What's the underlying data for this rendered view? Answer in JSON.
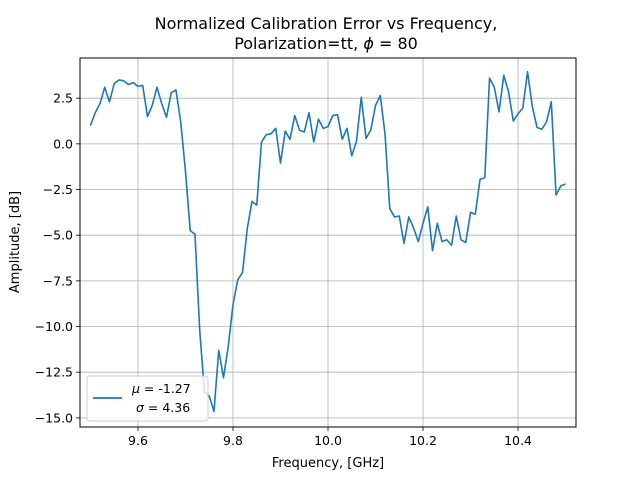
{
  "chart_data": {
    "type": "line",
    "title_line1": "Normalized Calibration Error vs Frequency,",
    "title_line2_prefix": "Polarization=tt, ",
    "title_line2_phi": "ϕ",
    "title_line2_suffix": " = 80",
    "xlabel": "Frequency, [GHz]",
    "ylabel": "Amplitude, [dB]",
    "xlim": [
      9.478,
      10.522
    ],
    "ylim": [
      -15.5,
      4.7
    ],
    "xticks": [
      9.6,
      9.8,
      10.0,
      10.2,
      10.4
    ],
    "xtick_labels": [
      "9.6",
      "9.8",
      "10.0",
      "10.2",
      "10.4"
    ],
    "yticks": [
      2.5,
      0.0,
      -2.5,
      -5.0,
      -7.5,
      -10.0,
      -12.5,
      -15.0
    ],
    "ytick_labels": [
      "2.5",
      "0.0",
      "−2.5",
      "−5.0",
      "−7.5",
      "−10.0",
      "−12.5",
      "−15.0"
    ],
    "grid": true,
    "legend_position": "lower-left",
    "line_color": "#1f77b4",
    "legend": {
      "mu_symbol": "μ",
      "mu_text": " = -1.27",
      "sigma_symbol": "σ",
      "sigma_text": " = 4.36"
    },
    "series": [
      {
        "x": [
          9.5,
          9.51,
          9.52,
          9.53,
          9.54,
          9.55,
          9.56,
          9.57,
          9.58,
          9.59,
          9.6,
          9.61,
          9.62,
          9.63,
          9.64,
          9.65,
          9.66,
          9.67,
          9.68,
          9.69,
          9.7,
          9.71,
          9.72,
          9.73,
          9.74,
          9.75,
          9.76,
          9.77,
          9.78,
          9.79,
          9.8,
          9.81,
          9.82,
          9.83,
          9.84,
          9.85,
          9.86,
          9.87,
          9.88,
          9.89,
          9.9,
          9.91,
          9.92,
          9.93,
          9.94,
          9.95,
          9.96,
          9.97,
          9.98,
          9.99,
          10.0,
          10.01,
          10.02,
          10.03,
          10.04,
          10.05,
          10.06,
          10.07,
          10.08,
          10.09,
          10.1,
          10.11,
          10.12,
          10.13,
          10.14,
          10.15,
          10.16,
          10.17,
          10.18,
          10.19,
          10.2,
          10.21,
          10.22,
          10.23,
          10.24,
          10.25,
          10.26,
          10.27,
          10.28,
          10.29,
          10.3,
          10.31,
          10.32,
          10.33,
          10.34,
          10.35,
          10.36,
          10.37,
          10.38,
          10.39,
          10.4,
          10.41,
          10.42,
          10.43,
          10.44,
          10.45,
          10.46,
          10.47,
          10.48,
          10.49,
          10.5
        ],
        "y": [
          1.0,
          1.7,
          2.2,
          3.1,
          2.3,
          3.3,
          3.5,
          3.45,
          3.25,
          3.35,
          3.15,
          3.2,
          1.5,
          2.1,
          3.1,
          2.2,
          1.45,
          2.8,
          2.95,
          1.2,
          -1.5,
          -4.75,
          -4.95,
          -10.2,
          -13.6,
          -13.8,
          -14.65,
          -11.3,
          -12.8,
          -11.1,
          -8.8,
          -7.45,
          -7.05,
          -4.65,
          -3.15,
          -3.35,
          0.1,
          0.5,
          0.55,
          0.85,
          -1.05,
          0.7,
          0.25,
          1.55,
          0.75,
          0.65,
          1.7,
          0.1,
          1.35,
          0.85,
          0.95,
          1.55,
          1.6,
          0.25,
          0.85,
          -0.65,
          0.15,
          2.55,
          0.3,
          0.75,
          2.1,
          2.65,
          0.55,
          -3.55,
          -4.0,
          -3.95,
          -5.45,
          -4.0,
          -4.6,
          -5.35,
          -4.35,
          -3.45,
          -5.85,
          -4.35,
          -5.35,
          -5.25,
          -5.55,
          -3.95,
          -5.25,
          -5.4,
          -3.75,
          -3.85,
          -1.95,
          -1.85,
          3.6,
          3.1,
          1.75,
          3.75,
          2.85,
          1.25,
          1.65,
          1.95,
          3.95,
          2.05,
          0.9,
          0.8,
          1.2,
          2.3,
          -2.8,
          -2.3,
          -2.2
        ]
      }
    ]
  }
}
